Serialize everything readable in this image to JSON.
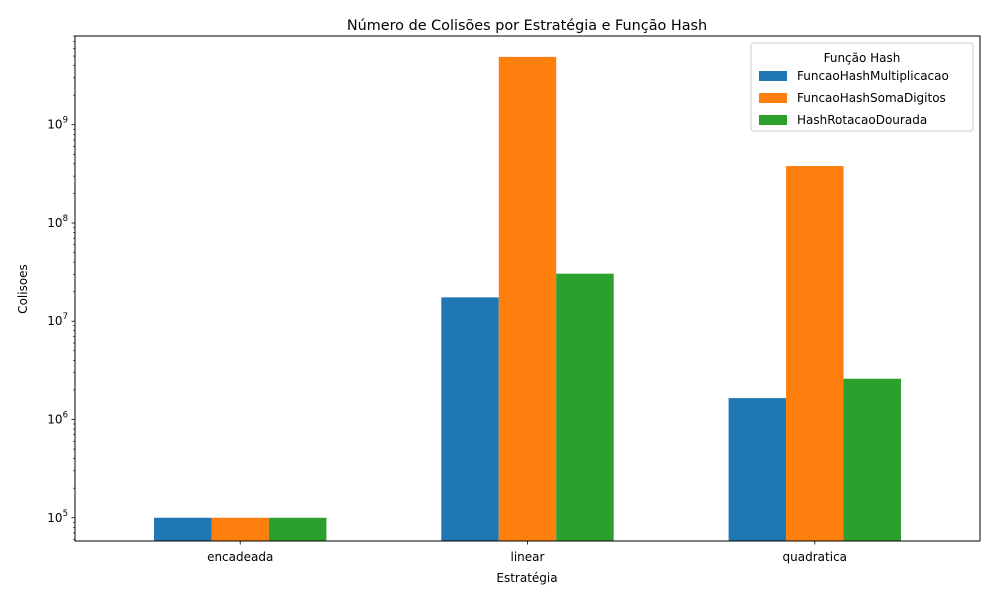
{
  "chart_data": {
    "type": "bar",
    "title": "Número de Colisões por Estratégia e Função Hash",
    "xlabel": "Estratégia",
    "ylabel": "Colisoes",
    "yscale": "log",
    "ylim": [
      58000,
      8000000000
    ],
    "yticks": [
      {
        "value": 100000,
        "base": "10",
        "exp": "5"
      },
      {
        "value": 1000000,
        "base": "10",
        "exp": "6"
      },
      {
        "value": 10000000,
        "base": "10",
        "exp": "7"
      },
      {
        "value": 100000000,
        "base": "10",
        "exp": "8"
      },
      {
        "value": 1000000000,
        "base": "10",
        "exp": "9"
      }
    ],
    "categories": [
      "encadeada",
      "linear",
      "quadratica"
    ],
    "series": [
      {
        "name": "FuncaoHashMultiplicacao",
        "color": "#1f77b4",
        "values": [
          100000,
          17500000,
          1650000
        ]
      },
      {
        "name": "FuncaoHashSomaDigitos",
        "color": "#ff7f0e",
        "values": [
          100000,
          4900000000,
          380000000
        ]
      },
      {
        "name": "HashRotacaoDourada",
        "color": "#2ca02c",
        "values": [
          100000,
          30500000,
          2600000
        ]
      }
    ],
    "legend": {
      "title": "Função Hash",
      "position": "top-right"
    },
    "grid": false
  }
}
